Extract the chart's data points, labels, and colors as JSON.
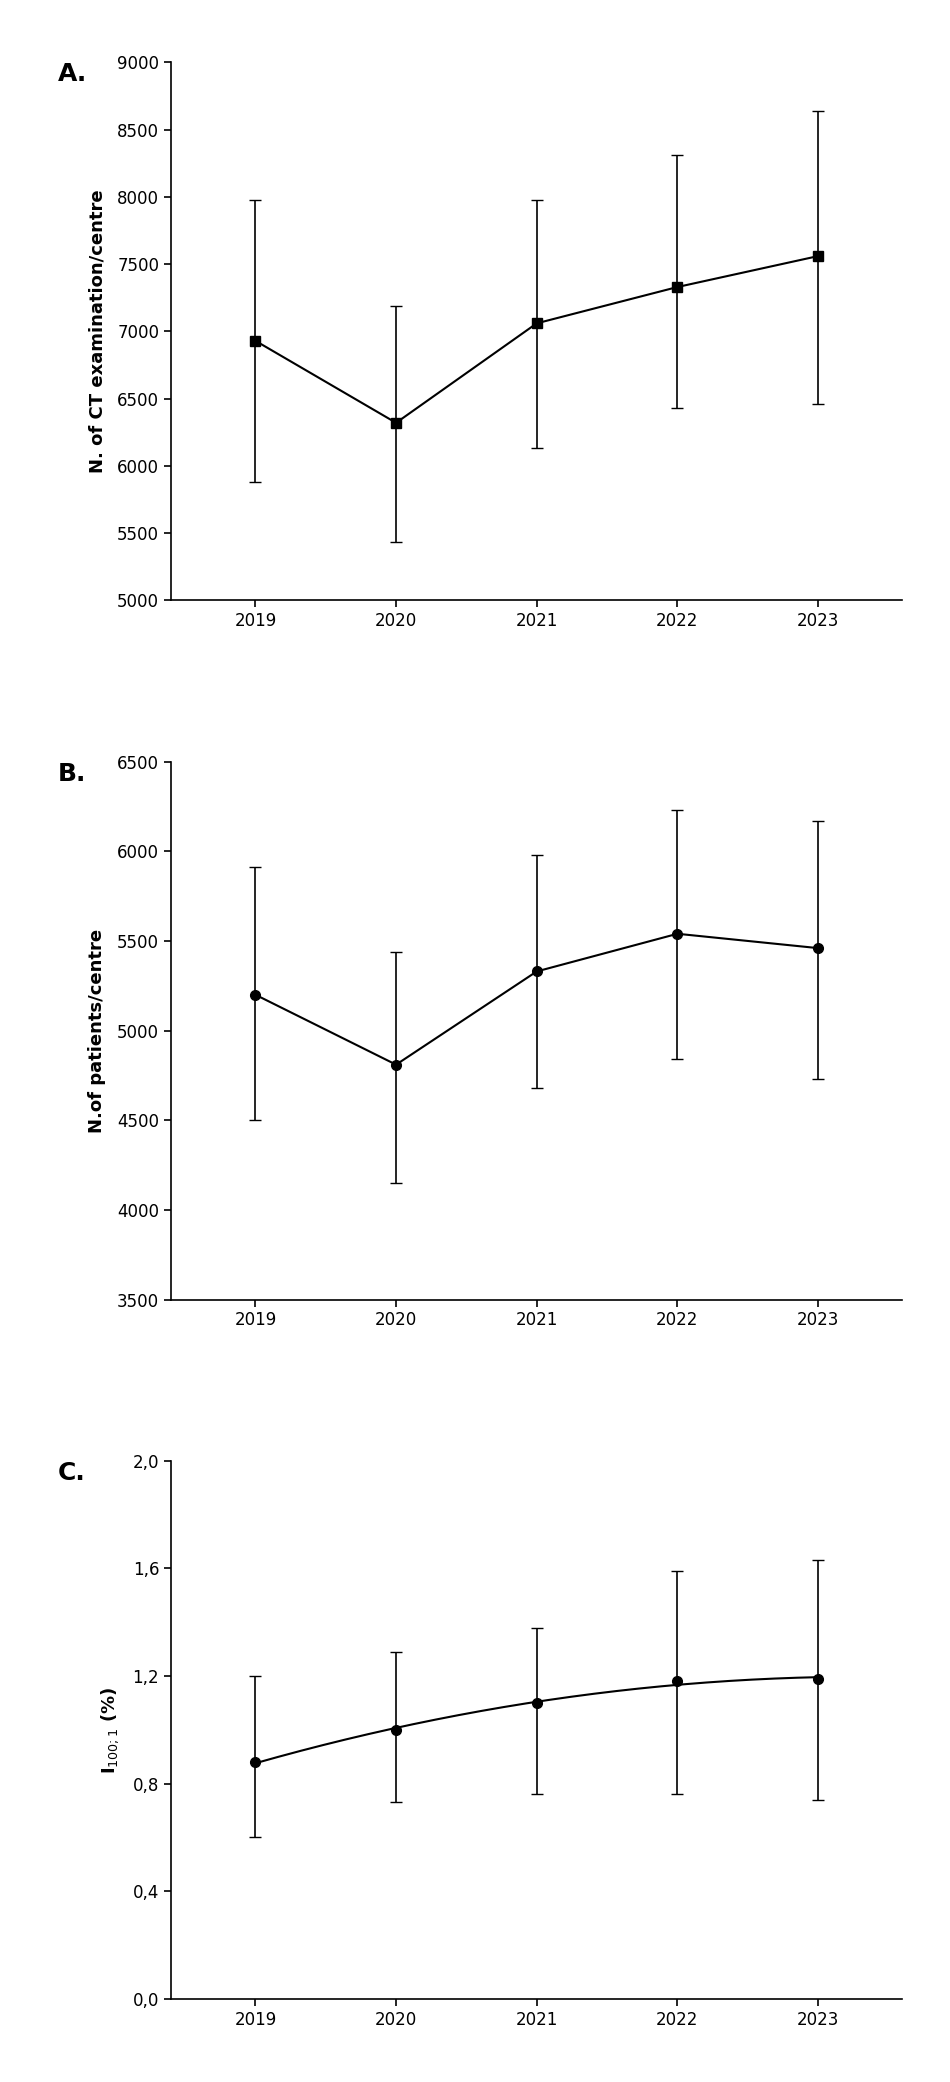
{
  "years": [
    2019,
    2020,
    2021,
    2022,
    2023
  ],
  "A_values": [
    6930,
    6320,
    7060,
    7330,
    7560
  ],
  "A_err_upper": [
    7980,
    7190,
    7980,
    8310,
    8640
  ],
  "A_err_lower": [
    5880,
    5430,
    6130,
    6430,
    6460
  ],
  "A_ylabel": "N. of CT examination/centre",
  "A_ylim": [
    5000,
    9000
  ],
  "A_yticks": [
    5000,
    5500,
    6000,
    6500,
    7000,
    7500,
    8000,
    8500,
    9000
  ],
  "A_label": "A.",
  "B_values": [
    5200,
    4810,
    5330,
    5540,
    5460
  ],
  "B_err_upper": [
    5910,
    5440,
    5980,
    6230,
    6170
  ],
  "B_err_lower": [
    4500,
    4150,
    4680,
    4840,
    4730
  ],
  "B_ylabel": "N.of patients/centre",
  "B_ylim": [
    3500,
    6500
  ],
  "B_yticks": [
    3500,
    4000,
    4500,
    5000,
    5500,
    6000,
    6500
  ],
  "B_label": "B.",
  "C_values": [
    0.88,
    1.0,
    1.1,
    1.18,
    1.19
  ],
  "C_err_upper": [
    1.2,
    1.29,
    1.38,
    1.59,
    1.63
  ],
  "C_err_lower": [
    0.6,
    0.73,
    0.76,
    0.76,
    0.74
  ],
  "C_ylabel": "I$_{100;1}$ (%)",
  "C_ylim": [
    0.0,
    2.0
  ],
  "C_yticks": [
    0.0,
    0.4,
    0.8,
    1.2,
    1.6,
    2.0
  ],
  "C_ytick_labels": [
    "0,0",
    "0,4",
    "0,8",
    "1,2",
    "1,6",
    "2,0"
  ],
  "C_label": "C.",
  "line_color": "#000000",
  "marker_A": "s",
  "marker_B": "o",
  "marker_C": "o",
  "markersize": 7,
  "linewidth": 1.5,
  "capsize": 4,
  "elinewidth": 1.2,
  "background_color": "#ffffff",
  "fontsize_label": 13,
  "fontsize_tick": 12,
  "fontsize_panel": 18
}
